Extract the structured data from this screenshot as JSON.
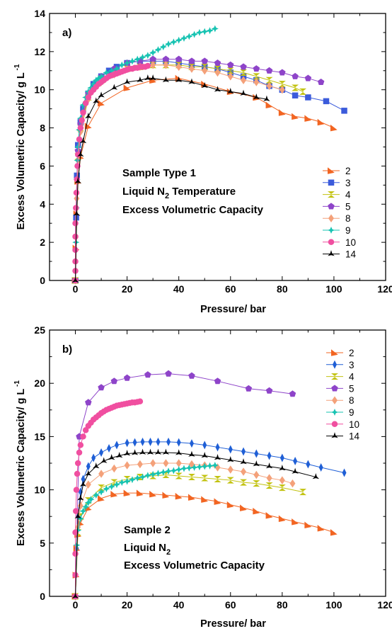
{
  "chart_data": [
    {
      "type": "line",
      "panel_label": "a)",
      "xlabel": "Pressure/ bar",
      "ylabel": "Excess Volumetric Capacity/ g L",
      "ylabel_sup": "-1",
      "xlim": [
        -10,
        120
      ],
      "ylim": [
        0,
        14
      ],
      "xticks": [
        0,
        20,
        40,
        60,
        80,
        100,
        120
      ],
      "yticks": [
        0,
        2,
        4,
        6,
        8,
        10,
        12,
        14
      ],
      "annotation": [
        {
          "text": "Sample Type  1"
        },
        {
          "text": "Liquid N",
          "sub": "2",
          "after": " Temperature"
        },
        {
          "text": "Excess Volumetric Capacity"
        }
      ],
      "legend_position": "right",
      "series": [
        {
          "name": "2",
          "color": "#f26522",
          "marker": "triangle-right",
          "x": [
            0,
            0.3,
            0.6,
            1,
            2,
            5,
            10,
            20,
            30,
            40,
            50,
            60,
            70,
            75,
            80,
            85,
            90,
            95,
            100
          ],
          "y": [
            0,
            1.7,
            3.5,
            5.2,
            6.5,
            8.1,
            9.3,
            10.1,
            10.5,
            10.6,
            10.3,
            9.9,
            9.6,
            9.2,
            8.8,
            8.6,
            8.5,
            8.3,
            8.0
          ]
        },
        {
          "name": "3",
          "color": "#3b5bdb",
          "marker": "square",
          "x": [
            0,
            0.3,
            0.6,
            1,
            2,
            3,
            5,
            7,
            10,
            13,
            16,
            20,
            25,
            30,
            35,
            40,
            45,
            50,
            55,
            60,
            65,
            70,
            75,
            80,
            85,
            90,
            97,
            104
          ],
          "y": [
            0,
            3.3,
            5.5,
            7.1,
            8.3,
            9.0,
            9.8,
            10.3,
            10.7,
            11.0,
            11.2,
            11.4,
            11.5,
            11.5,
            11.5,
            11.4,
            11.3,
            11.2,
            11.1,
            10.9,
            10.7,
            10.5,
            10.2,
            10.0,
            9.7,
            9.6,
            9.4,
            8.9
          ]
        },
        {
          "name": "4",
          "color": "#c2c20f",
          "marker": "hourglass",
          "x": [
            0,
            1,
            2,
            5,
            10,
            15,
            20,
            25,
            30,
            35,
            40,
            45,
            50,
            55,
            60,
            65,
            70,
            75,
            80,
            85,
            88
          ],
          "y": [
            0,
            6.5,
            8.0,
            9.6,
            10.5,
            10.9,
            11.1,
            11.2,
            11.3,
            11.3,
            11.3,
            11.2,
            11.2,
            11.1,
            11.0,
            10.9,
            10.7,
            10.5,
            10.3,
            10.1,
            9.9
          ]
        },
        {
          "name": "5",
          "color": "#8e44c9",
          "marker": "pentagon",
          "x": [
            0,
            1,
            2,
            5,
            10,
            15,
            20,
            25,
            30,
            35,
            40,
            45,
            50,
            55,
            60,
            65,
            70,
            75,
            80,
            85,
            90,
            95
          ],
          "y": [
            0,
            6.8,
            8.2,
            9.8,
            10.7,
            11.1,
            11.4,
            11.5,
            11.6,
            11.6,
            11.6,
            11.5,
            11.5,
            11.4,
            11.3,
            11.2,
            11.1,
            11.0,
            10.9,
            10.7,
            10.6,
            10.4
          ]
        },
        {
          "name": "8",
          "color": "#f4a17a",
          "marker": "diamond",
          "x": [
            0,
            0.5,
            1,
            2,
            5,
            10,
            15,
            20,
            25,
            30,
            35,
            40,
            45,
            50,
            55,
            60,
            65,
            70,
            75,
            80
          ],
          "y": [
            0,
            4.3,
            6.3,
            7.8,
            9.5,
            10.4,
            10.8,
            11.1,
            11.2,
            11.3,
            11.3,
            11.2,
            11.1,
            11.0,
            10.9,
            10.7,
            10.5,
            10.4,
            10.2,
            10.0
          ]
        },
        {
          "name": "9",
          "color": "#17c3b2",
          "marker": "diamond4",
          "x": [
            0,
            0.2,
            0.4,
            0.6,
            0.8,
            1,
            1.5,
            2,
            3,
            4,
            5,
            6,
            7,
            8,
            9,
            10,
            12,
            14,
            16,
            18,
            20,
            22,
            24,
            26,
            28,
            30,
            32,
            34,
            36,
            38,
            40,
            42,
            44,
            46,
            48,
            50,
            52,
            54
          ],
          "y": [
            0,
            2.0,
            3.8,
            5.3,
            6.3,
            7.0,
            7.9,
            8.5,
            9.2,
            9.6,
            9.9,
            10.1,
            10.3,
            10.5,
            10.6,
            10.7,
            10.9,
            11.0,
            11.1,
            11.3,
            11.4,
            11.5,
            11.6,
            11.7,
            11.8,
            11.95,
            12.1,
            12.25,
            12.4,
            12.5,
            12.6,
            12.7,
            12.8,
            12.9,
            13.0,
            13.05,
            13.1,
            13.2
          ]
        },
        {
          "name": "10",
          "color": "#f04fa0",
          "marker": "circle",
          "x": [
            0,
            0,
            0,
            0,
            0,
            0,
            0.2,
            0.4,
            0.6,
            0.8,
            1,
            1.5,
            2,
            2.5,
            3,
            4,
            5,
            6,
            7,
            8,
            9,
            10,
            11,
            12,
            13,
            14,
            15,
            16,
            17,
            18,
            19,
            20,
            21,
            22,
            23,
            24,
            25,
            26,
            27,
            28
          ],
          "y": [
            0,
            0.5,
            1.0,
            1.6,
            2.3,
            3.0,
            3.8,
            4.6,
            5.3,
            6.0,
            6.6,
            7.4,
            8.0,
            8.4,
            8.8,
            9.3,
            9.6,
            9.85,
            10.0,
            10.15,
            10.3,
            10.4,
            10.5,
            10.6,
            10.7,
            10.75,
            10.8,
            10.85,
            10.9,
            10.95,
            11.0,
            11.05,
            11.1,
            11.1,
            11.15,
            11.15,
            11.2,
            11.2,
            11.2,
            11.25
          ]
        },
        {
          "name": "14",
          "color": "#000000",
          "marker": "tristar",
          "x": [
            0,
            0.5,
            1,
            2,
            3,
            5,
            8,
            10,
            15,
            20,
            25,
            28,
            30,
            35,
            40,
            45,
            50,
            55,
            60,
            65,
            70,
            74
          ],
          "y": [
            0,
            3.5,
            5.2,
            6.6,
            7.3,
            8.6,
            9.4,
            9.7,
            10.1,
            10.4,
            10.5,
            10.6,
            10.6,
            10.5,
            10.5,
            10.4,
            10.2,
            10.0,
            9.9,
            9.8,
            9.6,
            9.5
          ]
        }
      ]
    },
    {
      "type": "line",
      "panel_label": "b)",
      "xlabel": "Pressure/ bar",
      "ylabel": "Excess Volumetric Capacity/ g L",
      "ylabel_sup": "-1",
      "xlim": [
        -10,
        120
      ],
      "ylim": [
        0,
        25
      ],
      "xticks": [
        0,
        20,
        40,
        60,
        80,
        100,
        120
      ],
      "yticks": [
        0,
        5,
        10,
        15,
        20,
        25
      ],
      "annotation": [
        {
          "text": "Sample 2"
        },
        {
          "text": "Liquid N",
          "sub": "2",
          "after": ""
        },
        {
          "text": "Excess Volumetric Capacity"
        }
      ],
      "legend_position": "top-right",
      "series": [
        {
          "name": "2",
          "color": "#f26522",
          "marker": "triangle-right",
          "x": [
            0,
            0.3,
            0.6,
            1,
            2,
            5,
            10,
            15,
            20,
            25,
            30,
            35,
            40,
            45,
            50,
            55,
            60,
            65,
            70,
            75,
            80,
            85,
            90,
            95,
            100
          ],
          "y": [
            0,
            2.0,
            4.5,
            5.8,
            6.9,
            8.3,
            9.2,
            9.6,
            9.7,
            9.7,
            9.6,
            9.5,
            9.4,
            9.3,
            9.1,
            8.9,
            8.6,
            8.3,
            8.0,
            7.6,
            7.3,
            7.0,
            6.7,
            6.4,
            6.0
          ]
        },
        {
          "name": "3",
          "color": "#1f5fd6",
          "marker": "diamond-v",
          "x": [
            0,
            0.5,
            1,
            2,
            3,
            5,
            7,
            10,
            13,
            16,
            20,
            23,
            26,
            29,
            32,
            36,
            40,
            45,
            50,
            55,
            60,
            65,
            70,
            75,
            80,
            85,
            90,
            95,
            104
          ],
          "y": [
            0,
            4.5,
            7.5,
            9.8,
            11.0,
            12.2,
            13.0,
            13.5,
            13.9,
            14.2,
            14.4,
            14.45,
            14.5,
            14.5,
            14.5,
            14.5,
            14.45,
            14.35,
            14.2,
            14.0,
            13.8,
            13.6,
            13.4,
            13.2,
            13.0,
            12.7,
            12.4,
            12.1,
            11.6
          ]
        },
        {
          "name": "4",
          "color": "#c2c20f",
          "marker": "hourglass",
          "x": [
            0,
            1,
            2,
            5,
            10,
            15,
            20,
            25,
            30,
            35,
            40,
            45,
            50,
            55,
            60,
            65,
            70,
            75,
            80,
            88
          ],
          "y": [
            0,
            6.0,
            7.5,
            9.0,
            10.2,
            10.7,
            11.0,
            11.2,
            11.3,
            11.4,
            11.3,
            11.2,
            11.1,
            11.0,
            10.9,
            10.7,
            10.6,
            10.4,
            10.2,
            9.8
          ]
        },
        {
          "name": "5",
          "color": "#8e44c9",
          "marker": "pentagon",
          "x": [
            0,
            1.5,
            5,
            10,
            15,
            20,
            28,
            36,
            45,
            55,
            67,
            75,
            84
          ],
          "y": [
            0,
            15.0,
            18.2,
            19.6,
            20.2,
            20.5,
            20.8,
            20.9,
            20.7,
            20.2,
            19.5,
            19.3,
            19.0
          ]
        },
        {
          "name": "8",
          "color": "#f4a17a",
          "marker": "diamond",
          "x": [
            0,
            1,
            2,
            5,
            10,
            15,
            20,
            25,
            30,
            35,
            40,
            45,
            50,
            55,
            60,
            65,
            70,
            75,
            80,
            84
          ],
          "y": [
            0,
            6.5,
            8.5,
            10.5,
            11.5,
            12.0,
            12.3,
            12.4,
            12.5,
            12.5,
            12.5,
            12.4,
            12.3,
            12.1,
            11.9,
            11.7,
            11.4,
            11.1,
            10.9,
            10.6
          ]
        },
        {
          "name": "9",
          "color": "#17c3b2",
          "marker": "diamond4",
          "x": [
            0,
            0.5,
            1,
            2,
            3,
            4,
            5,
            6,
            8,
            10,
            12,
            14,
            16,
            18,
            20,
            22,
            24,
            26,
            28,
            30,
            32,
            34,
            36,
            38,
            40,
            42,
            44,
            46,
            48,
            50,
            52,
            54
          ],
          "y": [
            0,
            4.8,
            6.2,
            7.3,
            8.0,
            8.4,
            8.8,
            9.1,
            9.5,
            9.8,
            10.1,
            10.3,
            10.5,
            10.7,
            10.8,
            10.95,
            11.1,
            11.2,
            11.35,
            11.45,
            11.55,
            11.65,
            11.75,
            11.8,
            11.9,
            12.0,
            12.05,
            12.1,
            12.15,
            12.2,
            12.25,
            12.3
          ]
        },
        {
          "name": "10",
          "color": "#f04fa0",
          "marker": "circle",
          "x": [
            0,
            0,
            0,
            0,
            0.2,
            0.4,
            0.7,
            1,
            1.5,
            2,
            3,
            4,
            5,
            6,
            7,
            8,
            9,
            10,
            11,
            12,
            13,
            14,
            15,
            16,
            17,
            18,
            19,
            20,
            21,
            22,
            23,
            24,
            25
          ],
          "y": [
            0,
            2,
            4,
            6,
            8,
            10,
            11.5,
            12.5,
            13.5,
            14.2,
            15.0,
            15.6,
            16.0,
            16.3,
            16.6,
            16.8,
            17.0,
            17.2,
            17.35,
            17.5,
            17.6,
            17.7,
            17.8,
            17.9,
            17.95,
            18.0,
            18.05,
            18.1,
            18.15,
            18.2,
            18.2,
            18.25,
            18.3
          ]
        },
        {
          "name": "14",
          "color": "#000000",
          "marker": "tristar",
          "x": [
            0,
            1,
            2,
            3,
            5,
            8,
            11,
            14,
            17,
            20,
            23,
            26,
            29,
            32,
            35,
            40,
            45,
            50,
            55,
            60,
            65,
            70,
            75,
            80,
            85,
            93
          ],
          "y": [
            0,
            7.5,
            9.2,
            10.5,
            11.5,
            12.2,
            12.7,
            13.0,
            13.2,
            13.4,
            13.45,
            13.5,
            13.5,
            13.5,
            13.5,
            13.45,
            13.3,
            13.2,
            13.0,
            12.8,
            12.6,
            12.4,
            12.2,
            12.0,
            11.7,
            11.2
          ]
        }
      ]
    }
  ]
}
